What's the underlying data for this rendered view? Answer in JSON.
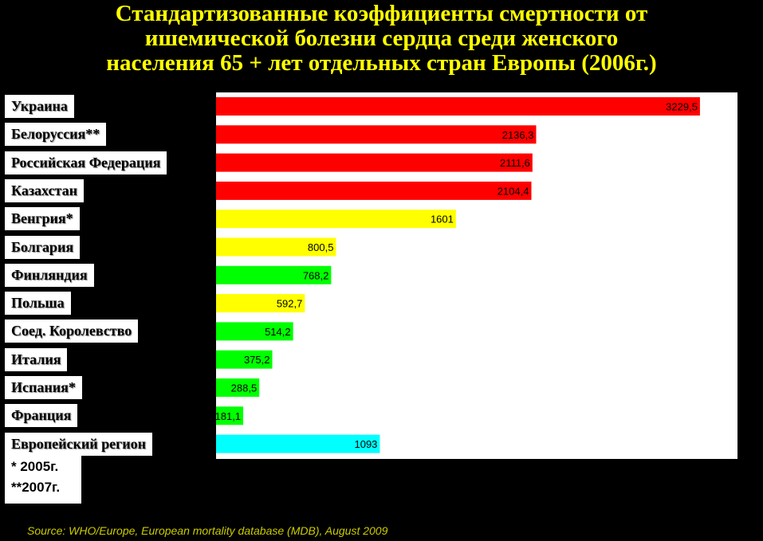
{
  "title_lines": [
    "Стандартизованные коэффициенты смертности от",
    "ишемической болезни сердца среди женского",
    "населения 65 + лет отдельных стран Европы (2006г.)"
  ],
  "notes": [
    "* 2005г.",
    "**2007г."
  ],
  "source": "Source: WHO/Europe, European mortality database (MDB), August  2009",
  "colors": {
    "red": "#ff0000",
    "yellow": "#ffff00",
    "green": "#00ff00",
    "cyan": "#00ffff"
  },
  "chart_data": {
    "type": "bar",
    "orientation": "horizontal",
    "title": "Стандартизованные коэффициенты смертности от ишемической болезни сердца среди женского населения 65 + лет отдельных стран Европы (2006г.)",
    "categories": [
      "Украина",
      "Белоруссия**",
      "Российская Федерация",
      "Казахстан",
      "Венгрия*",
      "Болгария",
      "Финляндия",
      "Польша",
      "Соед. Королевство",
      "Италия",
      "Испания*",
      "Франция",
      "Европейский регион"
    ],
    "values": [
      3229.5,
      2136.3,
      2111.6,
      2104.4,
      1601,
      800.5,
      768.2,
      592.7,
      514.2,
      375.2,
      288.5,
      181.1,
      1093
    ],
    "value_labels": [
      "3229,5",
      "2136,3",
      "2111,6",
      "2104,4",
      "1601",
      "800,5",
      "768,2",
      "592,7",
      "514,2",
      "375,2",
      "288,5",
      "181,1",
      "1093"
    ],
    "bar_colors": [
      "red",
      "red",
      "red",
      "red",
      "yellow",
      "yellow",
      "green",
      "yellow",
      "green",
      "green",
      "green",
      "green",
      "cyan"
    ],
    "xlim": [
      0,
      3480
    ],
    "grid": false,
    "legend": "none"
  }
}
